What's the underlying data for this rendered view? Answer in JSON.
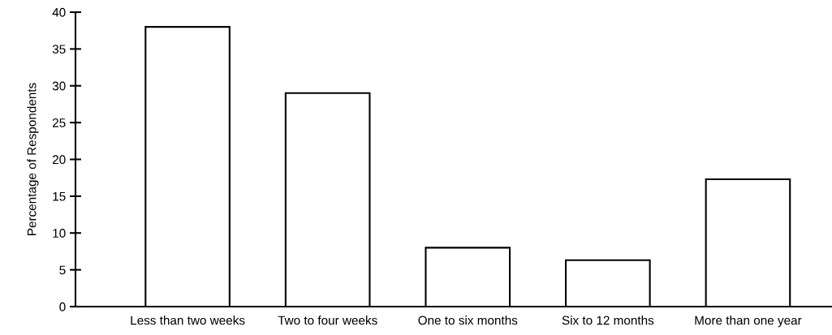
{
  "chart_data": {
    "type": "bar",
    "ylabel": "Percentage of Respondents",
    "categories": [
      "Less than two weeks",
      "Two to four weeks",
      "One to six months",
      "Six to 12 months",
      "More than one year"
    ],
    "values": [
      38,
      29,
      8,
      6.3,
      17.3
    ],
    "color": "#ffffff",
    "ylim": [
      0,
      40
    ],
    "yticks": [
      0,
      5,
      10,
      15,
      20,
      25,
      30,
      35,
      40
    ],
    "grid": false
  }
}
